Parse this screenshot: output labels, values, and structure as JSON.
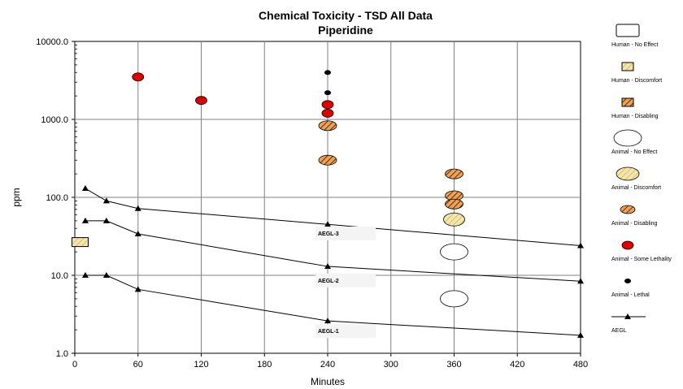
{
  "chart_data": {
    "type": "scatter",
    "title": "Chemical Toxicity - TSD All Data",
    "subtitle": "Piperidine",
    "xlabel": "Minutes",
    "ylabel": "ppm",
    "xlim": [
      0,
      480
    ],
    "ylim": [
      1,
      10000
    ],
    "yscale": "log",
    "grid": true,
    "legend_position": "right",
    "x_ticks": [
      "0",
      "60",
      "120",
      "180",
      "240",
      "300",
      "360",
      "420",
      "480"
    ],
    "y_ticks": [
      "1.0",
      "10.0",
      "100.0",
      "1000.0",
      "10000.0"
    ],
    "legend": [
      {
        "label": "Human - No Effect",
        "symbol": "rect",
        "fill": "#ffffff",
        "pattern": "none"
      },
      {
        "label": "Human - Discomfort",
        "symbol": "rect",
        "fill": "#f5e6a8",
        "pattern": "hatch-discomfort"
      },
      {
        "label": "Human - Disabling",
        "symbol": "rect",
        "fill": "#f0a050",
        "pattern": "hatch-disabling"
      },
      {
        "label": "Animal - No Effect",
        "symbol": "ellipse",
        "fill": "#ffffff",
        "pattern": "none"
      },
      {
        "label": "Animal - Discomfort",
        "symbol": "ellipse",
        "fill": "#f5e6a8",
        "pattern": "hatch-discomfort"
      },
      {
        "label": "Animal - Disabling",
        "symbol": "ellipse",
        "fill": "#f0a050",
        "pattern": "hatch-disabling"
      },
      {
        "label": "Animal - Some Lethality",
        "symbol": "ellipse",
        "fill": "#e00000",
        "pattern": "none"
      },
      {
        "label": "Animal - Lethal",
        "symbol": "dot",
        "fill": "#000000",
        "pattern": "none"
      },
      {
        "label": "AEGL",
        "symbol": "triangle-line",
        "fill": "#000000",
        "pattern": "none"
      }
    ],
    "aegl_series": [
      {
        "name": "AEGL-3",
        "x": [
          10,
          30,
          60,
          240,
          480
        ],
        "y": [
          130,
          90,
          72,
          45,
          24
        ]
      },
      {
        "name": "AEGL-2",
        "x": [
          10,
          30,
          60,
          240,
          480
        ],
        "y": [
          50,
          50,
          34,
          13,
          8.4
        ]
      },
      {
        "name": "AEGL-1",
        "x": [
          10,
          30,
          60,
          240,
          480
        ],
        "y": [
          10,
          10,
          6.6,
          2.6,
          1.7
        ]
      }
    ],
    "aegl_labels": [
      {
        "text": "AEGL-3",
        "x": 240,
        "y": 34
      },
      {
        "text": "AEGL-2",
        "x": 240,
        "y": 8.5
      },
      {
        "text": "AEGL-1",
        "x": 240,
        "y": 1.9
      }
    ],
    "points": [
      {
        "category": "Human - Discomfort",
        "x": 5,
        "y": 27
      },
      {
        "category": "Animal - Some Lethality",
        "x": 60,
        "y": 3500
      },
      {
        "category": "Animal - Some Lethality",
        "x": 120,
        "y": 1750
      },
      {
        "category": "Animal - Lethal",
        "x": 240,
        "y": 4000
      },
      {
        "category": "Animal - Lethal",
        "x": 240,
        "y": 2200
      },
      {
        "category": "Animal - Some Lethality",
        "x": 240,
        "y": 1550
      },
      {
        "category": "Animal - Some Lethality",
        "x": 240,
        "y": 1200
      },
      {
        "category": "Animal - Disabling",
        "x": 240,
        "y": 830
      },
      {
        "category": "Animal - Disabling",
        "x": 240,
        "y": 300
      },
      {
        "category": "Animal - Disabling",
        "x": 360,
        "y": 200
      },
      {
        "category": "Animal - Disabling",
        "x": 360,
        "y": 105
      },
      {
        "category": "Animal - Disabling",
        "x": 360,
        "y": 82
      },
      {
        "category": "Animal - Discomfort",
        "x": 360,
        "y": 52
      },
      {
        "category": "Animal - No Effect",
        "x": 360,
        "y": 20
      },
      {
        "category": "Animal - No Effect",
        "x": 360,
        "y": 5
      }
    ]
  }
}
